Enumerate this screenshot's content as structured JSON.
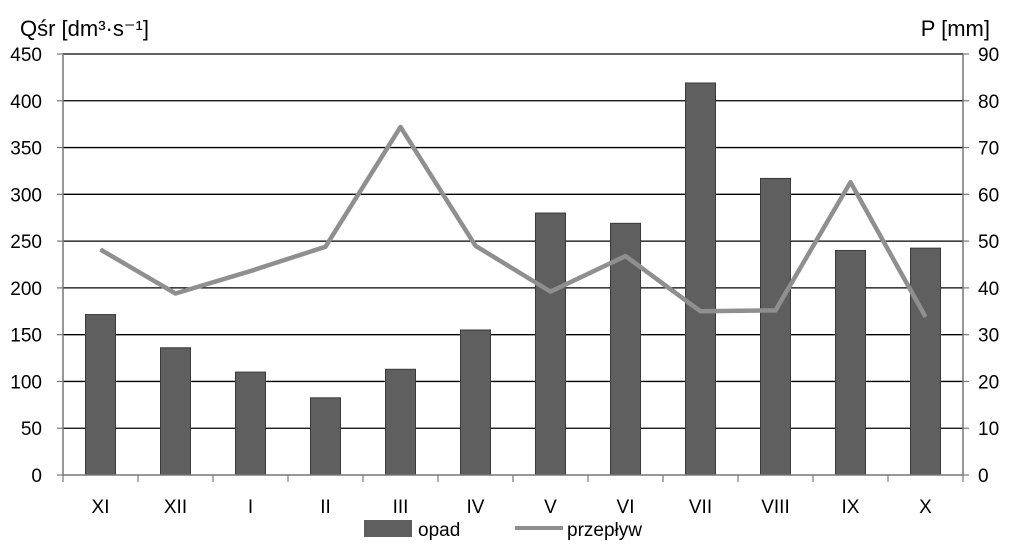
{
  "chart_data": {
    "type": "bar+line",
    "categories": [
      "XI",
      "XII",
      "I",
      "II",
      "III",
      "IV",
      "V",
      "VI",
      "VII",
      "VIII",
      "IX",
      "X"
    ],
    "series": [
      {
        "name": "opad",
        "type": "bar",
        "axis": "right",
        "values": [
          34.3,
          27.2,
          22.0,
          16.5,
          22.6,
          31.0,
          56.0,
          53.8,
          83.8,
          63.4,
          48.0,
          48.5
        ]
      },
      {
        "name": "przepływ",
        "type": "line",
        "axis": "left",
        "values": [
          241,
          194,
          218,
          244,
          372,
          245,
          196,
          234,
          175,
          176,
          313,
          169
        ]
      }
    ],
    "y_left": {
      "label": "Qśr [dm³·s⁻¹]",
      "ylim": [
        0,
        450
      ],
      "ticks": [
        "0",
        "50",
        "100",
        "150",
        "200",
        "250",
        "300",
        "350",
        "400",
        "450"
      ]
    },
    "y_right": {
      "label": "P [mm]",
      "ylim": [
        0,
        90
      ],
      "ticks": [
        "0",
        "10",
        "20",
        "30",
        "40",
        "50",
        "60",
        "70",
        "80",
        "90"
      ]
    },
    "grid": true,
    "legend_position": "bottom",
    "colors": {
      "bar": "#5f5f5f",
      "line": "#8f8f8f",
      "grid": "#000000",
      "axis": "#777777"
    }
  }
}
